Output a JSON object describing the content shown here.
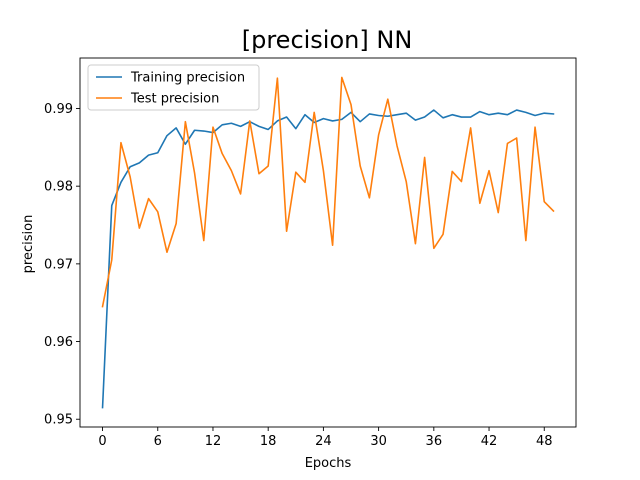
{
  "chart_data": {
    "type": "line",
    "title": "[precision] NN",
    "xlabel": "Epochs",
    "ylabel": "precision",
    "xlim": [
      -2.45,
      51.45
    ],
    "ylim": [
      0.949,
      0.9965
    ],
    "xticks": [
      0,
      6,
      12,
      18,
      24,
      30,
      36,
      42,
      48
    ],
    "yticks": [
      0.95,
      0.96,
      0.97,
      0.98,
      0.99
    ],
    "ytick_labels": [
      "0.95",
      "0.96",
      "0.97",
      "0.98",
      "0.99"
    ],
    "grid": false,
    "legend_position": "top-left",
    "x": [
      0,
      1,
      2,
      3,
      4,
      5,
      6,
      7,
      8,
      9,
      10,
      11,
      12,
      13,
      14,
      15,
      16,
      17,
      18,
      19,
      20,
      21,
      22,
      23,
      24,
      25,
      26,
      27,
      28,
      29,
      30,
      31,
      32,
      33,
      34,
      35,
      36,
      37,
      38,
      39,
      40,
      41,
      42,
      43,
      44,
      45,
      46,
      47,
      48,
      49
    ],
    "series": [
      {
        "name": "Training precision",
        "color": "#1f77b4",
        "values": [
          0.9515,
          0.9775,
          0.9805,
          0.9825,
          0.983,
          0.984,
          0.9843,
          0.9865,
          0.9875,
          0.9854,
          0.9872,
          0.9871,
          0.9869,
          0.9879,
          0.9881,
          0.9877,
          0.9883,
          0.9877,
          0.9873,
          0.9884,
          0.9889,
          0.9874,
          0.9892,
          0.9882,
          0.9887,
          0.9884,
          0.9886,
          0.9895,
          0.9883,
          0.9893,
          0.9891,
          0.989,
          0.9892,
          0.9894,
          0.9885,
          0.9889,
          0.9898,
          0.9888,
          0.9892,
          0.9889,
          0.9889,
          0.9896,
          0.9892,
          0.9894,
          0.9892,
          0.9898,
          0.9895,
          0.9891,
          0.9894,
          0.9893
        ]
      },
      {
        "name": "Test precision",
        "color": "#ff7f0e",
        "values": [
          0.9645,
          0.9705,
          0.9856,
          0.9812,
          0.9746,
          0.9784,
          0.9767,
          0.9715,
          0.9752,
          0.9883,
          0.9817,
          0.973,
          0.9876,
          0.9842,
          0.982,
          0.979,
          0.9884,
          0.9816,
          0.9826,
          0.9939,
          0.9742,
          0.9818,
          0.9805,
          0.9895,
          0.982,
          0.9724,
          0.994,
          0.9905,
          0.9826,
          0.9785,
          0.9866,
          0.9912,
          0.9852,
          0.9806,
          0.9726,
          0.9837,
          0.972,
          0.9738,
          0.9819,
          0.9806,
          0.9875,
          0.9778,
          0.982,
          0.9766,
          0.9855,
          0.9862,
          0.973,
          0.9876,
          0.978,
          0.9768
        ]
      }
    ]
  }
}
